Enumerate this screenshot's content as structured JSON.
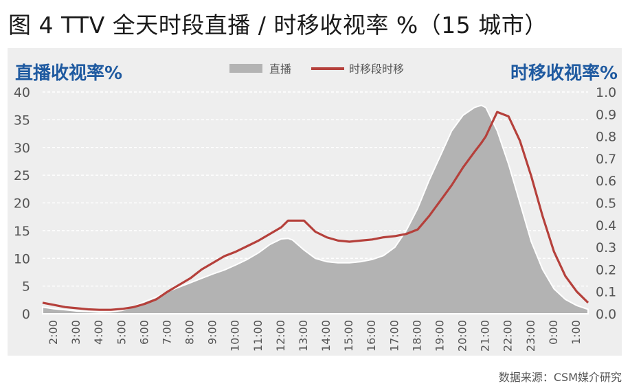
{
  "title": "图 4 TTV 全天时段直播 / 时移收视率 %（15 城市）",
  "source": "数据来源：CSM媒介研究",
  "chart_data": {
    "type": "area",
    "y_left_title": "直播收视率%",
    "y_right_title": "时移收视率%",
    "y_left_range": [
      0,
      40
    ],
    "y_right_range": [
      0,
      1.0
    ],
    "y_left_ticks": [
      "0",
      "5",
      "10",
      "15",
      "20",
      "25",
      "30",
      "35",
      "40"
    ],
    "y_right_ticks": [
      "0.0",
      "0.1",
      "0.2",
      "0.3",
      "0.4",
      "0.5",
      "0.6",
      "0.7",
      "0.8",
      "0.9",
      "1.0"
    ],
    "x_tick_labels": [
      "2:00",
      "3:00",
      "4:00",
      "5:00",
      "6:00",
      "7:00",
      "8:00",
      "9:00",
      "10:00",
      "11:00",
      "12:00",
      "13:00",
      "14:00",
      "15:00",
      "16:00",
      "17:00",
      "18:00",
      "19:00",
      "20:00",
      "21:00",
      "22:00",
      "23:00",
      "0:00",
      "1:00"
    ],
    "grid": true,
    "legend_position": "top-center",
    "x": [
      1.5,
      2,
      2.5,
      3,
      3.5,
      4,
      4.5,
      5,
      5.5,
      6,
      6.5,
      7,
      7.5,
      8,
      8.5,
      9,
      9.5,
      10,
      10.5,
      11,
      11.5,
      12,
      12.3,
      12.5,
      13,
      13.5,
      14,
      14.5,
      15,
      15.5,
      16,
      16.5,
      17,
      17.5,
      18,
      18.5,
      19,
      19.5,
      20,
      20.5,
      20.8,
      21,
      21.5,
      22,
      22.5,
      23,
      23.5,
      24,
      24.5,
      25,
      25.5
    ],
    "series": [
      {
        "name": "直播",
        "axis": "left",
        "color": "#b3b3b3",
        "values": [
          1.2,
          0.9,
          0.7,
          0.5,
          0.4,
          0.3,
          0.35,
          0.6,
          1.3,
          2.2,
          3.0,
          4.0,
          4.8,
          5.6,
          6.4,
          7.2,
          7.9,
          8.8,
          9.8,
          11.0,
          12.5,
          13.5,
          13.6,
          13.3,
          11.5,
          10.0,
          9.4,
          9.2,
          9.2,
          9.4,
          9.8,
          10.5,
          12.0,
          15.0,
          19.0,
          24.0,
          28.5,
          33.0,
          35.8,
          37.2,
          37.6,
          37.2,
          33.0,
          27.0,
          20.0,
          13.0,
          8.0,
          4.5,
          2.6,
          1.5,
          0.8
        ]
      },
      {
        "name": "时移段时移",
        "axis": "right",
        "color": "#b5403b",
        "values": [
          0.05,
          0.04,
          0.03,
          0.025,
          0.02,
          0.018,
          0.018,
          0.022,
          0.03,
          0.045,
          0.065,
          0.1,
          0.13,
          0.16,
          0.2,
          0.23,
          0.26,
          0.28,
          0.305,
          0.33,
          0.36,
          0.39,
          0.42,
          0.42,
          0.42,
          0.37,
          0.345,
          0.33,
          0.325,
          0.33,
          0.335,
          0.345,
          0.35,
          0.36,
          0.38,
          0.44,
          0.51,
          0.58,
          0.66,
          0.73,
          0.77,
          0.8,
          0.91,
          0.89,
          0.78,
          0.62,
          0.44,
          0.28,
          0.17,
          0.1,
          0.05
        ]
      }
    ]
  }
}
